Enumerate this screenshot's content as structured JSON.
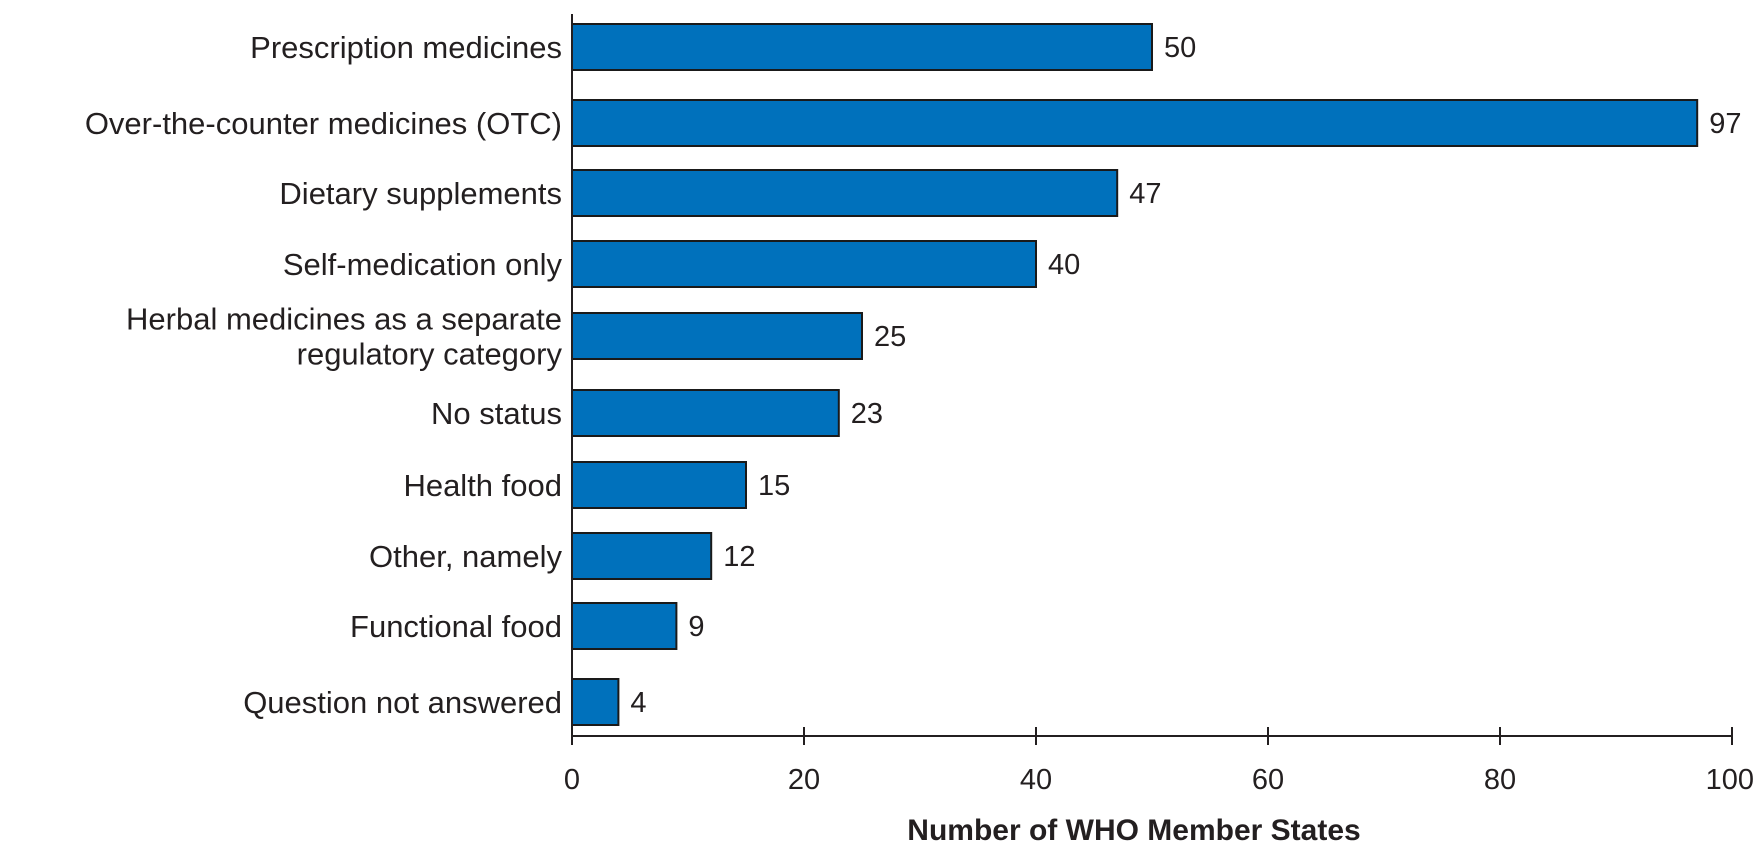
{
  "chart_data": {
    "type": "bar",
    "orientation": "horizontal",
    "categories": [
      [
        "Prescription medicines"
      ],
      [
        "Over-the-counter medicines (OTC)"
      ],
      [
        "Dietary supplements"
      ],
      [
        "Self-medication only"
      ],
      [
        "Herbal medicines as a separate",
        "regulatory category"
      ],
      [
        "No status"
      ],
      [
        "Health food"
      ],
      [
        "Other, namely"
      ],
      [
        "Functional food"
      ],
      [
        "Question not answered"
      ]
    ],
    "values": [
      50,
      97,
      47,
      40,
      25,
      23,
      15,
      12,
      9,
      4
    ],
    "value_labels": [
      "50",
      "97",
      "47",
      "40",
      "25",
      "23",
      "15",
      "12",
      "9",
      "4"
    ],
    "xticks": [
      0,
      20,
      40,
      60,
      80,
      100
    ],
    "xtick_labels": [
      "0",
      "20",
      "40",
      "60",
      "80",
      "100"
    ],
    "xlim": [
      0,
      100
    ],
    "xlabel": "Number of WHO Member States",
    "ylabel": "",
    "title": "",
    "grid": false,
    "bar_color": "#0071bc"
  }
}
